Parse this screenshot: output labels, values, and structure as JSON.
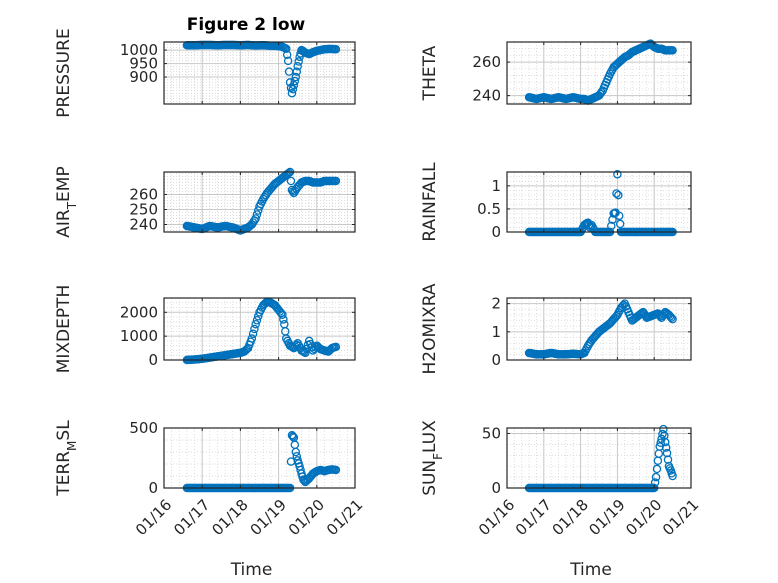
{
  "figure": {
    "title": "Figure 2 low"
  },
  "colors": {
    "marker": "#0072BD",
    "axis": "#262626",
    "grid": "#D0D0D0",
    "background": "#FFFFFF"
  },
  "x_tick_labels": [
    "01/16",
    "01/17",
    "01/18",
    "01/19",
    "01/20",
    "01/21"
  ],
  "chart_data": [
    {
      "type": "scatter",
      "title": "Figure 2 low",
      "ylabel": "PRESSURE",
      "xlabel": "",
      "xlim": [
        0,
        5
      ],
      "ylim": [
        800,
        1030
      ],
      "yticks": [
        900,
        950,
        1000
      ],
      "ytick_labels": [
        "900",
        "950",
        "1000"
      ],
      "grid": true,
      "minor_grid": true,
      "marker": "circle",
      "series": [
        {
          "x": [
            0.6,
            0.8,
            1.0,
            1.2,
            1.4,
            1.6,
            1.8,
            2.0,
            2.2,
            2.4,
            2.6,
            2.8,
            3.0,
            3.1,
            3.2,
            3.25,
            3.3,
            3.35,
            3.4,
            3.45,
            3.5,
            3.55,
            3.6,
            3.65,
            3.7,
            3.8,
            3.9,
            4.0,
            4.1,
            4.2,
            4.3,
            4.4,
            4.5
          ],
          "y": [
            1018,
            1018,
            1019,
            1019,
            1018,
            1019,
            1019,
            1018,
            1019,
            1017,
            1018,
            1016,
            1015,
            1012,
            1005,
            960,
            880,
            840,
            870,
            900,
            940,
            975,
            1000,
            995,
            990,
            985,
            992,
            997,
            1000,
            1003,
            1004,
            1004,
            1003
          ]
        }
      ]
    },
    {
      "type": "scatter",
      "title": "",
      "ylabel": "THETA",
      "xlabel": "",
      "xlim": [
        0,
        5
      ],
      "ylim": [
        235,
        272
      ],
      "yticks": [
        240,
        260
      ],
      "ytick_labels": [
        "240",
        "260"
      ],
      "grid": true,
      "minor_grid": true,
      "marker": "circle",
      "series": [
        {
          "x": [
            0.6,
            0.8,
            1.0,
            1.2,
            1.4,
            1.6,
            1.8,
            2.0,
            2.1,
            2.2,
            2.3,
            2.4,
            2.5,
            2.6,
            2.7,
            2.8,
            2.9,
            3.0,
            3.1,
            3.2,
            3.3,
            3.4,
            3.5,
            3.6,
            3.7,
            3.8,
            3.9,
            4.0,
            4.1,
            4.2,
            4.3,
            4.4,
            4.5
          ],
          "y": [
            239,
            238,
            239,
            238,
            239,
            238,
            239,
            238,
            238,
            237,
            238,
            239,
            240,
            243,
            248,
            253,
            257,
            259,
            261,
            263,
            264,
            266,
            267,
            268,
            269,
            270,
            271,
            269,
            268,
            268,
            267,
            267,
            267
          ]
        }
      ]
    },
    {
      "type": "scatter",
      "title": "",
      "ylabel": "AIR_TEMP",
      "xlabel": "",
      "xlim": [
        0,
        5
      ],
      "ylim": [
        235,
        275
      ],
      "yticks": [
        240,
        250,
        260
      ],
      "ytick_labels": [
        "240",
        "250",
        "260"
      ],
      "grid": true,
      "minor_grid": true,
      "marker": "circle",
      "series": [
        {
          "x": [
            0.6,
            0.8,
            1.0,
            1.2,
            1.4,
            1.6,
            1.8,
            2.0,
            2.1,
            2.2,
            2.3,
            2.4,
            2.5,
            2.6,
            2.7,
            2.8,
            2.9,
            3.0,
            3.1,
            3.2,
            3.3,
            3.35,
            3.4,
            3.5,
            3.6,
            3.7,
            3.8,
            3.9,
            4.0,
            4.1,
            4.2,
            4.3,
            4.4,
            4.5
          ],
          "y": [
            239,
            238,
            237,
            239,
            238,
            239,
            238,
            236,
            237,
            238,
            240,
            244,
            252,
            257,
            261,
            264,
            267,
            269,
            271,
            273,
            275,
            263,
            261,
            265,
            268,
            269,
            269,
            268,
            268,
            268,
            269,
            269,
            269,
            269
          ]
        }
      ]
    },
    {
      "type": "scatter",
      "title": "",
      "ylabel": "RAINFALL",
      "xlabel": "",
      "xlim": [
        0,
        5
      ],
      "ylim": [
        0,
        1.3
      ],
      "yticks": [
        0,
        0.5,
        1
      ],
      "ytick_labels": [
        "0",
        "0.5",
        "1"
      ],
      "grid": true,
      "minor_grid": true,
      "marker": "circle",
      "series": [
        {
          "x": [
            0.6,
            0.8,
            1.0,
            1.2,
            1.4,
            1.6,
            1.8,
            2.0,
            2.1,
            2.15,
            2.2,
            2.25,
            2.3,
            2.4,
            2.5,
            2.6,
            2.7,
            2.8,
            2.9,
            2.95,
            3.0,
            3.05,
            3.1,
            3.2,
            3.3,
            3.4,
            3.5,
            3.6,
            3.7,
            3.8,
            3.9,
            4.0,
            4.1,
            4.2,
            4.3,
            4.4,
            4.5
          ],
          "y": [
            0,
            0,
            0,
            0,
            0,
            0,
            0,
            0,
            0.15,
            0.18,
            0.2,
            0.1,
            0.15,
            0,
            0,
            0,
            0,
            0,
            0.4,
            0.42,
            1.25,
            0.35,
            0,
            0,
            0,
            0,
            0,
            0,
            0,
            0,
            0,
            0,
            0,
            0,
            0,
            0,
            0
          ]
        }
      ]
    },
    {
      "type": "scatter",
      "title": "",
      "ylabel": "MIXDEPTH",
      "xlabel": "",
      "xlim": [
        0,
        5
      ],
      "ylim": [
        0,
        2600
      ],
      "yticks": [
        0,
        1000,
        2000
      ],
      "ytick_labels": [
        "0",
        "1000",
        "2000"
      ],
      "grid": true,
      "minor_grid": true,
      "marker": "circle",
      "series": [
        {
          "x": [
            0.6,
            0.8,
            1.0,
            1.2,
            1.4,
            1.6,
            1.8,
            2.0,
            2.1,
            2.2,
            2.3,
            2.4,
            2.5,
            2.6,
            2.7,
            2.8,
            2.9,
            3.0,
            3.1,
            3.15,
            3.2,
            3.3,
            3.4,
            3.5,
            3.6,
            3.7,
            3.8,
            3.9,
            4.0,
            4.1,
            4.2,
            4.3,
            4.4,
            4.5
          ],
          "y": [
            0,
            20,
            50,
            100,
            150,
            200,
            250,
            300,
            350,
            500,
            900,
            1500,
            2000,
            2300,
            2450,
            2400,
            2300,
            2100,
            1900,
            1500,
            900,
            600,
            500,
            700,
            400,
            300,
            800,
            400,
            600,
            450,
            400,
            350,
            500,
            550
          ]
        }
      ]
    },
    {
      "type": "scatter",
      "title": "",
      "ylabel": "H2OMIXRA",
      "xlabel": "",
      "xlim": [
        0,
        5
      ],
      "ylim": [
        0,
        2.2
      ],
      "yticks": [
        0,
        1,
        2
      ],
      "ytick_labels": [
        "0",
        "1",
        "2"
      ],
      "grid": true,
      "minor_grid": true,
      "marker": "circle",
      "series": [
        {
          "x": [
            0.6,
            0.8,
            1.0,
            1.2,
            1.4,
            1.6,
            1.8,
            2.0,
            2.1,
            2.2,
            2.3,
            2.4,
            2.5,
            2.6,
            2.7,
            2.8,
            2.9,
            3.0,
            3.1,
            3.2,
            3.3,
            3.4,
            3.5,
            3.6,
            3.7,
            3.8,
            3.9,
            4.0,
            4.1,
            4.2,
            4.3,
            4.4,
            4.5
          ],
          "y": [
            0.25,
            0.2,
            0.2,
            0.25,
            0.2,
            0.2,
            0.22,
            0.2,
            0.25,
            0.5,
            0.7,
            0.85,
            1.0,
            1.1,
            1.2,
            1.3,
            1.45,
            1.6,
            1.85,
            2.0,
            1.7,
            1.4,
            1.5,
            1.6,
            1.7,
            1.5,
            1.55,
            1.6,
            1.65,
            1.5,
            1.7,
            1.6,
            1.45
          ]
        }
      ]
    },
    {
      "type": "scatter",
      "title": "",
      "ylabel": "TERR_MSL",
      "xlabel": "Time",
      "xlim": [
        0,
        5
      ],
      "ylim": [
        0,
        500
      ],
      "yticks": [
        0,
        500
      ],
      "ytick_labels": [
        "0",
        "500"
      ],
      "grid": true,
      "minor_grid": true,
      "marker": "circle",
      "series": [
        {
          "x": [
            0.6,
            0.8,
            1.0,
            1.2,
            1.4,
            1.6,
            1.8,
            2.0,
            2.2,
            2.4,
            2.6,
            2.8,
            3.0,
            3.2,
            3.3,
            3.35,
            3.4,
            3.45,
            3.5,
            3.55,
            3.6,
            3.65,
            3.7,
            3.8,
            3.9,
            4.0,
            4.1,
            4.2,
            4.3,
            4.4,
            4.5
          ],
          "y": [
            0,
            0,
            0,
            0,
            0,
            0,
            0,
            0,
            0,
            0,
            0,
            0,
            0,
            0,
            0,
            440,
            420,
            300,
            230,
            180,
            120,
            70,
            50,
            80,
            120,
            140,
            150,
            140,
            150,
            155,
            150
          ]
        }
      ]
    },
    {
      "type": "scatter",
      "title": "",
      "ylabel": "SUN_FLUX",
      "xlabel": "Time",
      "xlim": [
        0,
        5
      ],
      "ylim": [
        0,
        55
      ],
      "yticks": [
        0,
        50
      ],
      "ytick_labels": [
        "0",
        "50"
      ],
      "grid": true,
      "minor_grid": true,
      "marker": "circle",
      "series": [
        {
          "x": [
            0.6,
            0.8,
            1.0,
            1.2,
            1.4,
            1.6,
            1.8,
            2.0,
            2.2,
            2.4,
            2.6,
            2.8,
            3.0,
            3.2,
            3.4,
            3.6,
            3.8,
            4.0,
            4.05,
            4.1,
            4.15,
            4.2,
            4.25,
            4.3,
            4.35,
            4.4,
            4.45,
            4.5
          ],
          "y": [
            0,
            0,
            0,
            0,
            0,
            0,
            0,
            0,
            0,
            0,
            0,
            0,
            0,
            0,
            0,
            0,
            0,
            0,
            10,
            25,
            38,
            45,
            54,
            42,
            32,
            20,
            16,
            11
          ]
        }
      ]
    }
  ]
}
